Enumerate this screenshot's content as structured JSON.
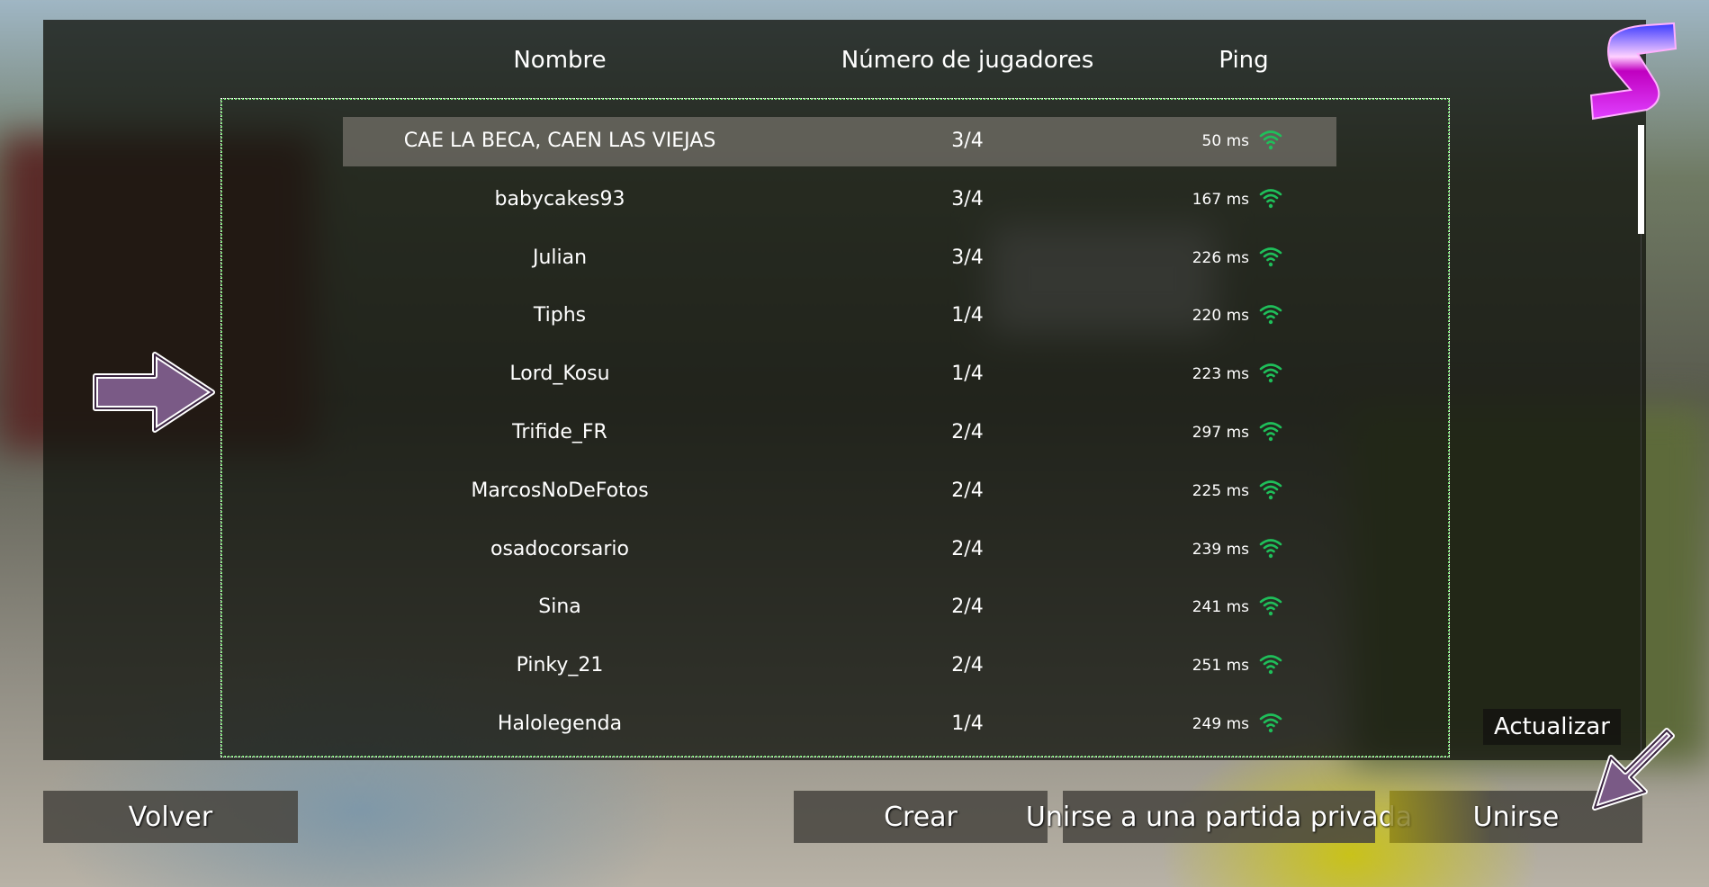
{
  "headers": {
    "name": "Nombre",
    "players": "Número de jugadores",
    "ping": "Ping"
  },
  "servers": [
    {
      "name": "CAE LA BECA, CAEN LAS VIEJAS",
      "players": "3/4",
      "ping": "50 ms",
      "selected": true
    },
    {
      "name": "babycakes93",
      "players": "3/4",
      "ping": "167 ms"
    },
    {
      "name": "Julian",
      "players": "3/4",
      "ping": "226 ms"
    },
    {
      "name": "Tiphs",
      "players": "1/4",
      "ping": "220 ms"
    },
    {
      "name": "Lord_Kosu",
      "players": "1/4",
      "ping": "223 ms"
    },
    {
      "name": "Trifide_FR",
      "players": "2/4",
      "ping": "297 ms"
    },
    {
      "name": "MarcosNoDeFotos",
      "players": "2/4",
      "ping": "225 ms"
    },
    {
      "name": "osadocorsario",
      "players": "2/4",
      "ping": "239 ms"
    },
    {
      "name": "Sina",
      "players": "2/4",
      "ping": "241 ms"
    },
    {
      "name": "Pinky_21",
      "players": "2/4",
      "ping": "251 ms"
    },
    {
      "name": "Halolegenda",
      "players": "1/4",
      "ping": "249 ms"
    }
  ],
  "buttons": {
    "refresh": "Actualizar",
    "back": "Volver",
    "create": "Crear",
    "join_private": "Unirse a una partida privada",
    "join": "Unirse"
  },
  "icons": {
    "ping": "wifi-signal-icon",
    "logo": "s-logo-icon",
    "hint_arrows": "arrow-icon"
  },
  "colors": {
    "ping_icon": "#1fbf5a",
    "list_border": "#6fe06a",
    "arrow": "#7a5a86"
  }
}
